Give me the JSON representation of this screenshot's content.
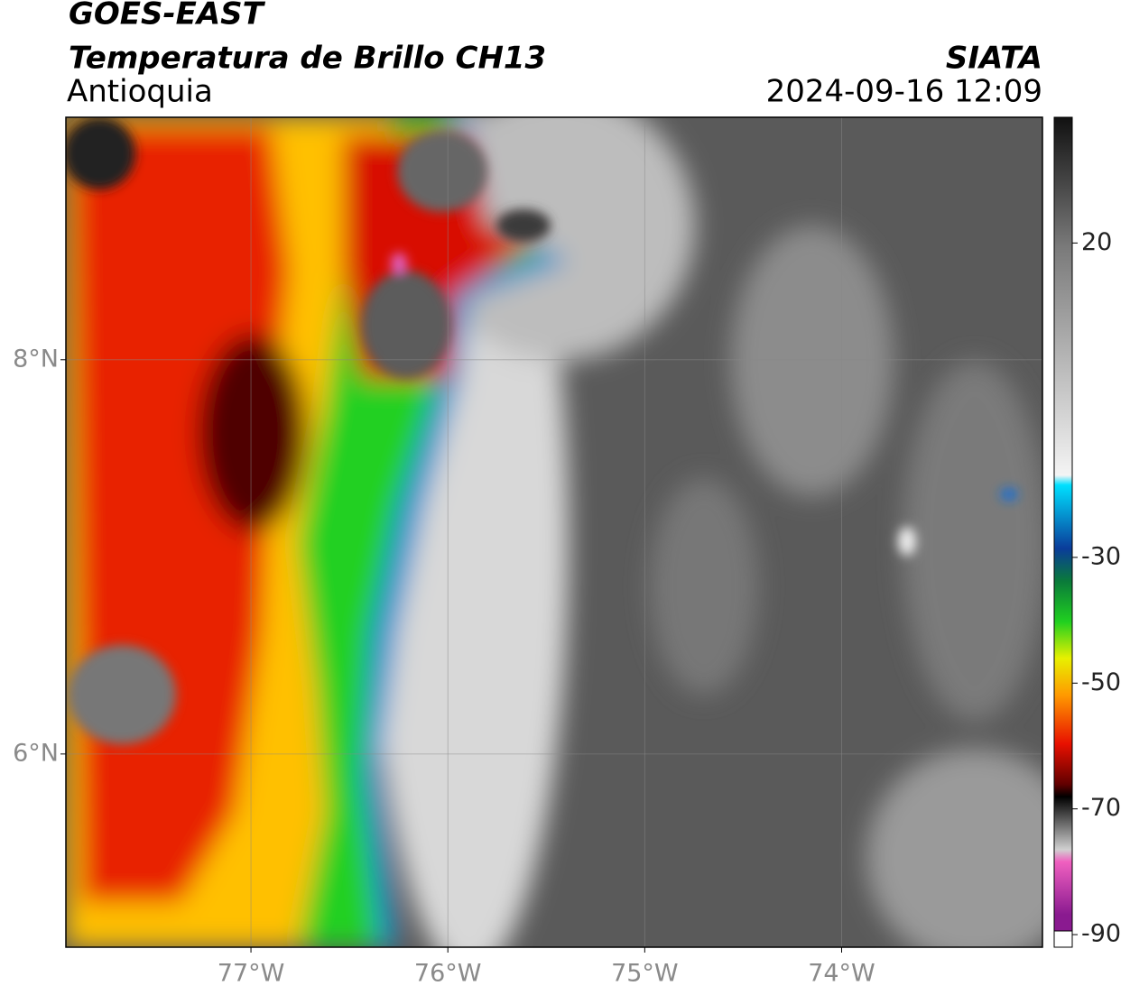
{
  "header": {
    "title": "GOES-EAST",
    "subtitle": "Temperatura de Brillo CH13",
    "region": "Antioquia",
    "source": "SIATA",
    "datetime": "2024-09-16 12:09"
  },
  "map": {
    "xlim": [
      -77.94,
      -72.98
    ],
    "ylim": [
      5.02,
      9.23
    ],
    "xticks": [
      {
        "value": -77,
        "label": "77°W"
      },
      {
        "value": -76,
        "label": "76°W"
      },
      {
        "value": -75,
        "label": "75°W"
      },
      {
        "value": -74,
        "label": "74°W"
      }
    ],
    "yticks": [
      {
        "value": 8,
        "label": "8°N"
      },
      {
        "value": 6,
        "label": "6°N"
      }
    ],
    "grid": true
  },
  "colorbar": {
    "lim": [
      -92,
      40
    ],
    "ticks": [
      20,
      -30,
      -50,
      -70,
      -90
    ]
  }
}
